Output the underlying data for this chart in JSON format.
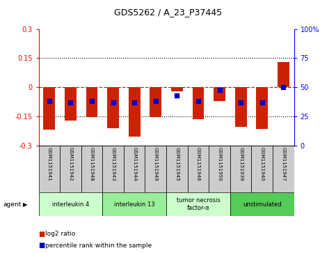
{
  "title": "GDS5262 / A_23_P37445",
  "samples": [
    "GSM1151941",
    "GSM1151942",
    "GSM1151948",
    "GSM1151943",
    "GSM1151944",
    "GSM1151949",
    "GSM1151945",
    "GSM1151946",
    "GSM1151950",
    "GSM1151939",
    "GSM1151940",
    "GSM1151947"
  ],
  "log2_ratio": [
    -0.22,
    -0.17,
    -0.155,
    -0.21,
    -0.255,
    -0.155,
    -0.02,
    -0.165,
    -0.07,
    -0.205,
    -0.215,
    0.13
  ],
  "percentile_rank": [
    38,
    37,
    38,
    37,
    37,
    38,
    43,
    38,
    48,
    37,
    37,
    50
  ],
  "groups": [
    {
      "label": "interleukin 4",
      "start": 0,
      "end": 3,
      "color": "#ccffcc"
    },
    {
      "label": "interleukin 13",
      "start": 3,
      "end": 6,
      "color": "#99ee99"
    },
    {
      "label": "tumor necrosis\nfactor-α",
      "start": 6,
      "end": 9,
      "color": "#ccffcc"
    },
    {
      "label": "unstimulated",
      "start": 9,
      "end": 12,
      "color": "#55cc55"
    }
  ],
  "ylim": [
    -0.3,
    0.3
  ],
  "yticks": [
    -0.3,
    -0.15,
    0,
    0.15,
    0.3
  ],
  "ytick_labels_left": [
    "-0.3",
    "-0.15",
    "0",
    "0.15",
    "0.3"
  ],
  "ytick_labels_right": [
    "0",
    "25",
    "50",
    "75",
    "100%"
  ],
  "bar_color": "#cc2200",
  "dot_color": "#0000cc",
  "bar_width": 0.55,
  "sample_box_color": "#cccccc",
  "agent_label": "agent",
  "legend_items": [
    {
      "label": "log2 ratio",
      "color": "#cc2200"
    },
    {
      "label": "percentile rank within the sample",
      "color": "#0000cc"
    }
  ]
}
